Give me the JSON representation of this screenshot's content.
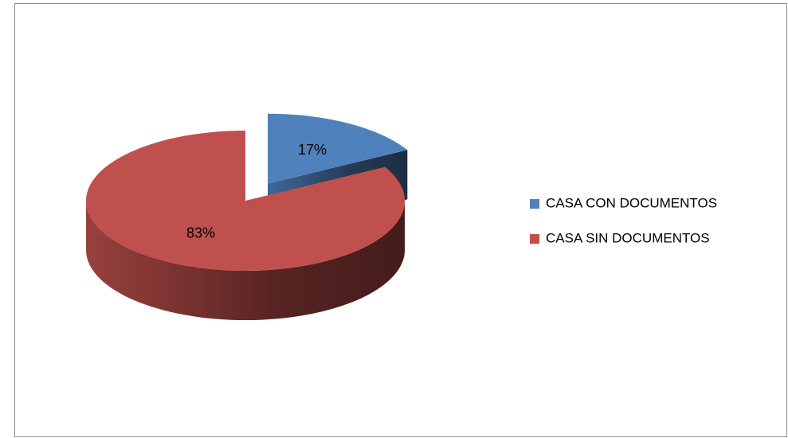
{
  "chart_data": {
    "type": "pie",
    "categories": [
      "CASA CON DOCUMENTOS",
      "CASA SIN DOCUMENTOS"
    ],
    "values": [
      17,
      83
    ],
    "value_labels": [
      "17%",
      "83%"
    ],
    "colors": [
      "#4f81bd",
      "#c0504d"
    ],
    "legend": "right",
    "exploded": [
      true,
      false
    ]
  }
}
